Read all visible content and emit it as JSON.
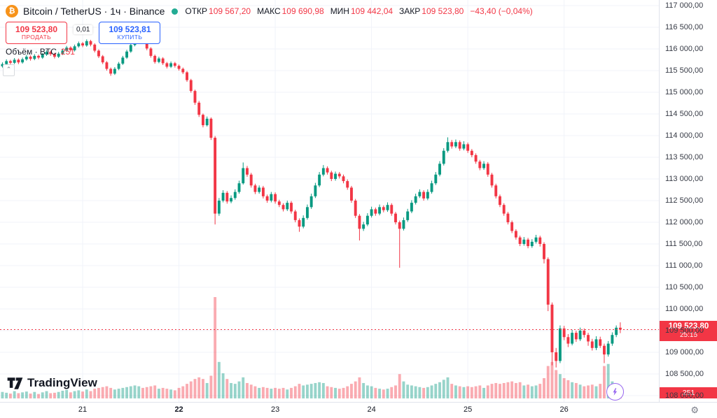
{
  "header": {
    "symbol_title": "Bitcoin / TetherUS · 1ч · Binance",
    "ohlc": {
      "open_label": "ОТКР",
      "open": "109 567,20",
      "high_label": "МАКС",
      "high": "109 690,98",
      "low_label": "МИН",
      "low": "109 442,04",
      "close_label": "ЗАКР",
      "close": "109 523,80",
      "change": "−43,40 (−0,04%)"
    }
  },
  "trade_panel": {
    "sell_price": "109 523,80",
    "sell_label": "ПРОДАТЬ",
    "spread": "0,01",
    "buy_price": "109 523,81",
    "buy_label": "КУПИТЬ"
  },
  "volume_row": {
    "label": "Объём · BTC",
    "value": "251"
  },
  "watermark": {
    "text": "TradingView"
  },
  "icons": {
    "bitcoin": "₿",
    "gear": "⚙",
    "chevron_up": "⌃"
  },
  "colors": {
    "up": "#089981",
    "down": "#f23645",
    "buy_blue": "#2962ff",
    "bitcoin_orange": "#f7931a",
    "status_teal": "#22ab94",
    "purple": "#9868f0"
  },
  "price_axis": {
    "last_price_label": "109 523,80",
    "countdown": "25:15",
    "volume_tag": "251"
  },
  "chart_data": {
    "type": "candlestick",
    "title": "Bitcoin / TetherUS · 1ч · Binance",
    "legend_ohlc": {
      "open": 109567.2,
      "high": 109690.98,
      "low": 109442.04,
      "close": 109523.8,
      "change": -43.4,
      "change_pct": -0.04
    },
    "last_price": 109523.8,
    "last_volume": 251,
    "y_range": [
      108000,
      117000
    ],
    "grid": true,
    "y_ticks": [
      117000,
      116500,
      116000,
      115500,
      115000,
      114500,
      114000,
      113500,
      113000,
      112500,
      112000,
      111500,
      111000,
      110500,
      110000,
      109500,
      109000,
      108500,
      108000
    ],
    "y_tick_labels": [
      "117 000,00",
      "116 500,00",
      "116 000,00",
      "115 500,00",
      "115 000,00",
      "114 500,00",
      "114 000,00",
      "113 500,00",
      "113 000,00",
      "112 500,00",
      "112 000,00",
      "111 500,00",
      "111 000,00",
      "110 500,00",
      "110 000,00",
      "109 500,00",
      "109 000,00",
      "108 500,00",
      "108 000,00"
    ],
    "x_ticks": [
      {
        "label": "21",
        "index": 20
      },
      {
        "label": "22",
        "index": 44,
        "bold": true
      },
      {
        "label": "23",
        "index": 68
      },
      {
        "label": "24",
        "index": 92
      },
      {
        "label": "25",
        "index": 116
      },
      {
        "label": "26",
        "index": 140
      }
    ],
    "columns": [
      "open",
      "high",
      "low",
      "close",
      "volume"
    ],
    "candles": [
      [
        115600,
        115690,
        115570,
        115650,
        160
      ],
      [
        115650,
        115760,
        115620,
        115720,
        140
      ],
      [
        115720,
        115750,
        115640,
        115680,
        120
      ],
      [
        115680,
        115790,
        115650,
        115750,
        180
      ],
      [
        115750,
        115780,
        115650,
        115690,
        130
      ],
      [
        115690,
        115800,
        115660,
        115760,
        150
      ],
      [
        115760,
        115860,
        115730,
        115820,
        170
      ],
      [
        115820,
        115850,
        115730,
        115770,
        120
      ],
      [
        115770,
        115880,
        115740,
        115840,
        160
      ],
      [
        115840,
        115870,
        115760,
        115800,
        110
      ],
      [
        115800,
        115910,
        115770,
        115870,
        150
      ],
      [
        115870,
        115970,
        115840,
        115930,
        180
      ],
      [
        115930,
        115960,
        115840,
        115880,
        130
      ],
      [
        115880,
        115910,
        115780,
        115820,
        140
      ],
      [
        115820,
        115930,
        115790,
        115890,
        160
      ],
      [
        115890,
        116000,
        115860,
        115960,
        190
      ],
      [
        115960,
        116070,
        115930,
        116030,
        210
      ],
      [
        116030,
        116060,
        115930,
        115970,
        150
      ],
      [
        115970,
        116100,
        115940,
        116060,
        180
      ],
      [
        116060,
        116170,
        116030,
        116130,
        200
      ],
      [
        116130,
        116160,
        116040,
        116080,
        170
      ],
      [
        116080,
        116220,
        116050,
        116180,
        220
      ],
      [
        116180,
        116210,
        116060,
        116100,
        180
      ],
      [
        116100,
        116130,
        115920,
        115960,
        240
      ],
      [
        115960,
        115990,
        115790,
        115830,
        260
      ],
      [
        115830,
        115860,
        115650,
        115690,
        280
      ],
      [
        115690,
        115720,
        115500,
        115540,
        300
      ],
      [
        115540,
        115570,
        115380,
        115430,
        260
      ],
      [
        115430,
        115580,
        115400,
        115540,
        220
      ],
      [
        115540,
        115700,
        115510,
        115660,
        240
      ],
      [
        115660,
        115840,
        115630,
        115800,
        260
      ],
      [
        115800,
        115980,
        115770,
        115940,
        280
      ],
      [
        115940,
        116130,
        115910,
        116090,
        300
      ],
      [
        116090,
        116270,
        116060,
        116230,
        320
      ],
      [
        116230,
        116360,
        116200,
        116300,
        300
      ],
      [
        116300,
        116330,
        116130,
        116170,
        260
      ],
      [
        116170,
        116200,
        115970,
        116010,
        280
      ],
      [
        116010,
        116040,
        115800,
        115840,
        300
      ],
      [
        115840,
        115870,
        115660,
        115700,
        320
      ],
      [
        115700,
        115820,
        115670,
        115780,
        240
      ],
      [
        115780,
        115810,
        115630,
        115670,
        260
      ],
      [
        115670,
        115700,
        115550,
        115590,
        240
      ],
      [
        115590,
        115710,
        115560,
        115670,
        220
      ],
      [
        115670,
        115700,
        115570,
        115610,
        200
      ],
      [
        115610,
        115640,
        115500,
        115540,
        260
      ],
      [
        115540,
        115570,
        115420,
        115460,
        300
      ],
      [
        115460,
        115490,
        115240,
        115280,
        360
      ],
      [
        115280,
        115310,
        114990,
        115030,
        420
      ],
      [
        115030,
        115060,
        114710,
        114760,
        480
      ],
      [
        114760,
        114800,
        114430,
        114480,
        520
      ],
      [
        114480,
        114510,
        114190,
        114240,
        480
      ],
      [
        114240,
        114440,
        114210,
        114390,
        380
      ],
      [
        114390,
        114420,
        113900,
        113950,
        560
      ],
      [
        113950,
        113990,
        111950,
        112200,
        2500
      ],
      [
        112200,
        112560,
        112150,
        112500,
        900
      ],
      [
        112500,
        112740,
        112460,
        112680,
        620
      ],
      [
        112680,
        112720,
        112430,
        112480,
        480
      ],
      [
        112480,
        112620,
        112440,
        112560,
        380
      ],
      [
        112560,
        112760,
        112520,
        112700,
        360
      ],
      [
        112700,
        112960,
        112660,
        112900,
        420
      ],
      [
        112900,
        113380,
        112870,
        113250,
        520
      ],
      [
        113250,
        113300,
        113050,
        113100,
        380
      ],
      [
        113100,
        113140,
        112800,
        112850,
        340
      ],
      [
        112850,
        112890,
        112650,
        112700,
        300
      ],
      [
        112700,
        112850,
        112660,
        112800,
        260
      ],
      [
        112800,
        112840,
        112550,
        112600,
        280
      ],
      [
        112600,
        112640,
        112450,
        112500,
        260
      ],
      [
        112500,
        112700,
        112460,
        112650,
        240
      ],
      [
        112650,
        112690,
        112430,
        112480,
        260
      ],
      [
        112480,
        112520,
        112350,
        112400,
        240
      ],
      [
        112400,
        112440,
        112250,
        112300,
        260
      ],
      [
        112300,
        112500,
        112260,
        112450,
        220
      ],
      [
        112450,
        112490,
        112200,
        112250,
        260
      ],
      [
        112250,
        112290,
        112000,
        112050,
        300
      ],
      [
        112050,
        112090,
        111780,
        111900,
        360
      ],
      [
        111900,
        112160,
        111860,
        112100,
        320
      ],
      [
        112100,
        112410,
        112060,
        112350,
        340
      ],
      [
        112350,
        112660,
        112310,
        112600,
        360
      ],
      [
        112600,
        112910,
        112560,
        112850,
        380
      ],
      [
        112850,
        113160,
        112810,
        113100,
        400
      ],
      [
        113100,
        113320,
        113060,
        113250,
        380
      ],
      [
        113250,
        113290,
        113100,
        113150,
        300
      ],
      [
        113150,
        113190,
        112950,
        113000,
        280
      ],
      [
        113000,
        113170,
        112960,
        113120,
        260
      ],
      [
        113120,
        113160,
        113010,
        113060,
        240
      ],
      [
        113060,
        113100,
        112900,
        112950,
        260
      ],
      [
        112950,
        112990,
        112750,
        112800,
        300
      ],
      [
        112800,
        112840,
        112450,
        112500,
        360
      ],
      [
        112500,
        112540,
        112100,
        112150,
        420
      ],
      [
        112150,
        112190,
        111580,
        111850,
        520
      ],
      [
        111850,
        112010,
        111800,
        111950,
        380
      ],
      [
        111950,
        112210,
        111910,
        112150,
        320
      ],
      [
        112150,
        112360,
        112110,
        112300,
        300
      ],
      [
        112300,
        112340,
        112150,
        112200,
        260
      ],
      [
        112200,
        112410,
        112160,
        112350,
        240
      ],
      [
        112350,
        112390,
        112230,
        112280,
        220
      ],
      [
        112280,
        112460,
        112240,
        112400,
        240
      ],
      [
        112400,
        112440,
        112150,
        112200,
        280
      ],
      [
        112200,
        112240,
        111950,
        112000,
        320
      ],
      [
        112000,
        112040,
        110950,
        111850,
        600
      ],
      [
        111850,
        112110,
        111810,
        112050,
        420
      ],
      [
        112050,
        112310,
        112010,
        112250,
        340
      ],
      [
        112250,
        112510,
        112210,
        112450,
        320
      ],
      [
        112450,
        112660,
        112410,
        112600,
        300
      ],
      [
        112600,
        112760,
        112560,
        112700,
        280
      ],
      [
        112700,
        112740,
        112500,
        112550,
        260
      ],
      [
        112550,
        112760,
        112510,
        112700,
        280
      ],
      [
        112700,
        112960,
        112660,
        112900,
        320
      ],
      [
        112900,
        113160,
        112860,
        113100,
        360
      ],
      [
        113100,
        113410,
        113060,
        113350,
        400
      ],
      [
        113350,
        113710,
        113310,
        113650,
        460
      ],
      [
        113650,
        113960,
        113610,
        113850,
        520
      ],
      [
        113850,
        113900,
        113700,
        113750,
        360
      ],
      [
        113750,
        113910,
        113710,
        113850,
        320
      ],
      [
        113850,
        113890,
        113650,
        113700,
        300
      ],
      [
        113700,
        113870,
        113660,
        113800,
        280
      ],
      [
        113800,
        113840,
        113600,
        113650,
        300
      ],
      [
        113650,
        113690,
        113500,
        113550,
        280
      ],
      [
        113550,
        113590,
        113350,
        113400,
        300
      ],
      [
        113400,
        113440,
        113200,
        113250,
        320
      ],
      [
        113250,
        113410,
        113210,
        113350,
        260
      ],
      [
        113350,
        113390,
        113050,
        113100,
        320
      ],
      [
        113100,
        113140,
        112800,
        112850,
        360
      ],
      [
        112850,
        112890,
        112550,
        112600,
        380
      ],
      [
        112600,
        112640,
        112350,
        112400,
        360
      ],
      [
        112400,
        112440,
        112150,
        112200,
        380
      ],
      [
        112200,
        112240,
        111950,
        112000,
        400
      ],
      [
        112000,
        112040,
        111750,
        111800,
        420
      ],
      [
        111800,
        111840,
        111600,
        111650,
        380
      ],
      [
        111650,
        111690,
        111450,
        111500,
        400
      ],
      [
        111500,
        111660,
        111460,
        111600,
        320
      ],
      [
        111600,
        111640,
        111400,
        111450,
        340
      ],
      [
        111450,
        111610,
        111410,
        111550,
        300
      ],
      [
        111550,
        111710,
        111510,
        111650,
        320
      ],
      [
        111650,
        111690,
        111440,
        111500,
        360
      ],
      [
        111500,
        111540,
        111050,
        111150,
        500
      ],
      [
        111150,
        111190,
        109950,
        110100,
        800
      ],
      [
        110100,
        110150,
        108700,
        109000,
        900
      ],
      [
        109000,
        109100,
        108650,
        108800,
        700
      ],
      [
        108800,
        109620,
        108750,
        109550,
        600
      ],
      [
        109550,
        109610,
        109280,
        109350,
        500
      ],
      [
        109350,
        109420,
        109120,
        109200,
        450
      ],
      [
        109200,
        109520,
        109160,
        109450,
        400
      ],
      [
        109450,
        109500,
        109240,
        109300,
        380
      ],
      [
        109300,
        109570,
        109260,
        109500,
        340
      ],
      [
        109500,
        109550,
        109340,
        109400,
        300
      ],
      [
        109400,
        109450,
        109150,
        109250,
        320
      ],
      [
        109250,
        109310,
        109040,
        109100,
        340
      ],
      [
        109100,
        109370,
        109050,
        109300,
        300
      ],
      [
        109300,
        109360,
        109100,
        109150,
        360
      ],
      [
        109150,
        109200,
        108750,
        108950,
        800
      ],
      [
        108950,
        109260,
        108900,
        109200,
        850
      ],
      [
        109200,
        109460,
        109150,
        109400,
        420
      ],
      [
        109400,
        109620,
        109350,
        109567.2,
        310
      ],
      [
        109567.2,
        109690.98,
        109442.04,
        109523.8,
        251
      ]
    ]
  }
}
